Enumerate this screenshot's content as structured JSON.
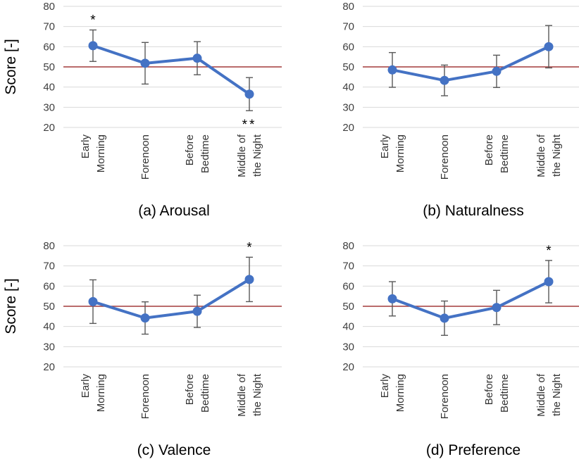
{
  "colors": {
    "line": "#4472C4",
    "reference": "#A33A3A",
    "grid": "#D9D9D9",
    "errorbar": "#595959"
  },
  "chart_data": [
    {
      "type": "line",
      "caption": "(a) Arousal",
      "ylabel": "Score [-]",
      "categories": [
        [
          "Early",
          "Morning"
        ],
        [
          "Forenoon"
        ],
        [
          "Before",
          "Bedtime"
        ],
        [
          "Middle of",
          "the Night"
        ]
      ],
      "values": [
        60.5,
        51.8,
        54.3,
        36.5
      ],
      "errors": [
        7.8,
        10.3,
        8.2,
        8.2
      ],
      "yticks": [
        20,
        30,
        40,
        50,
        60,
        70,
        80
      ],
      "ylim": [
        20,
        80
      ],
      "reference_line": 50,
      "annotations": [
        {
          "category_index": 0,
          "text": "*",
          "position": "above"
        },
        {
          "category_index": 3,
          "text": "**",
          "position": "below"
        }
      ]
    },
    {
      "type": "line",
      "caption": "(b) Naturalness",
      "ylabel": "",
      "categories": [
        [
          "Early",
          "Morning"
        ],
        [
          "Forenoon"
        ],
        [
          "Before",
          "Bedtime"
        ],
        [
          "Middle of",
          "the Night"
        ]
      ],
      "values": [
        48.5,
        43.3,
        47.8,
        60.0
      ],
      "errors": [
        8.6,
        7.6,
        8.0,
        10.5
      ],
      "yticks": [
        20,
        30,
        40,
        50,
        60,
        70,
        80
      ],
      "ylim": [
        20,
        80
      ],
      "reference_line": 50,
      "annotations": []
    },
    {
      "type": "line",
      "caption": "(c) Valence",
      "ylabel": "Score [-]",
      "categories": [
        [
          "Early",
          "Morning"
        ],
        [
          "Forenoon"
        ],
        [
          "Before",
          "Bedtime"
        ],
        [
          "Middle of",
          "the Night"
        ]
      ],
      "values": [
        52.3,
        44.2,
        47.5,
        63.3
      ],
      "errors": [
        10.8,
        8.0,
        8.0,
        11.0
      ],
      "yticks": [
        20,
        30,
        40,
        50,
        60,
        70,
        80
      ],
      "ylim": [
        20,
        80
      ],
      "reference_line": 50,
      "annotations": [
        {
          "category_index": 3,
          "text": "*",
          "position": "above"
        }
      ]
    },
    {
      "type": "line",
      "caption": "(d) Preference",
      "ylabel": "",
      "categories": [
        [
          "Early",
          "Morning"
        ],
        [
          "Forenoon"
        ],
        [
          "Before",
          "Bedtime"
        ],
        [
          "Middle of",
          "the Night"
        ]
      ],
      "values": [
        53.7,
        44.1,
        49.4,
        62.2
      ],
      "errors": [
        8.5,
        8.5,
        8.5,
        10.5
      ],
      "yticks": [
        20,
        30,
        40,
        50,
        60,
        70,
        80
      ],
      "ylim": [
        20,
        80
      ],
      "reference_line": 50,
      "annotations": [
        {
          "category_index": 3,
          "text": "*",
          "position": "above"
        }
      ]
    }
  ]
}
